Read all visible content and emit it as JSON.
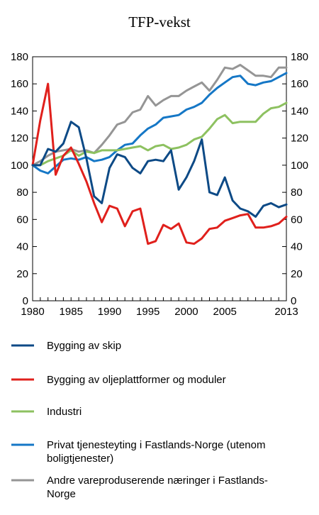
{
  "chart_data": {
    "type": "line",
    "title": "TFP-vekst",
    "xlabel": "",
    "ylabel": "",
    "ylim": [
      0,
      180
    ],
    "yticks": [
      0,
      20,
      40,
      60,
      80,
      100,
      120,
      140,
      160,
      180
    ],
    "xticks": [
      1980,
      1985,
      1990,
      1995,
      2000,
      2005,
      2013
    ],
    "xlim": [
      1980,
      2013
    ],
    "grid": false,
    "legend_position": "bottom",
    "x": [
      1980,
      1981,
      1982,
      1983,
      1984,
      1985,
      1986,
      1987,
      1988,
      1989,
      1990,
      1991,
      1992,
      1993,
      1994,
      1995,
      1996,
      1997,
      1998,
      1999,
      2000,
      2001,
      2002,
      2003,
      2004,
      2005,
      2006,
      2007,
      2008,
      2009,
      2010,
      2011,
      2012,
      2013
    ],
    "series": [
      {
        "name": "Bygging av skip",
        "color": "#0d4a86",
        "values": [
          100,
          100,
          112,
          110,
          116,
          132,
          128,
          105,
          77,
          72,
          98,
          108,
          106,
          98,
          94,
          103,
          104,
          103,
          111,
          82,
          91,
          103,
          119,
          80,
          78,
          91,
          74,
          68,
          66,
          62,
          70,
          72,
          69,
          71
        ]
      },
      {
        "name": "Bygging av oljeplattformer og moduler",
        "color": "#e0201c",
        "values": [
          100,
          133,
          160,
          93,
          107,
          113,
          101,
          88,
          72,
          58,
          70,
          68,
          55,
          66,
          68,
          42,
          44,
          56,
          53,
          57,
          43,
          42,
          46,
          53,
          54,
          59,
          61,
          63,
          64,
          54,
          54,
          55,
          57,
          62
        ]
      },
      {
        "name": "Industri",
        "color": "#8dc160",
        "values": [
          100,
          100,
          103,
          105,
          107,
          111,
          107,
          110,
          109,
          111,
          111,
          111,
          112,
          113,
          114,
          111,
          114,
          115,
          112,
          113,
          115,
          119,
          121,
          127,
          134,
          137,
          131,
          132,
          132,
          132,
          138,
          142,
          143,
          146
        ]
      },
      {
        "name": "Privat tjenesteyting i Fastlands-Norge (utenom boligtjenester)",
        "color": "#1577c6",
        "values": [
          100,
          96,
          94,
          99,
          104,
          105,
          104,
          106,
          103,
          104,
          106,
          111,
          115,
          116,
          122,
          127,
          130,
          135,
          136,
          137,
          141,
          143,
          146,
          152,
          157,
          161,
          165,
          166,
          160,
          159,
          161,
          162,
          165,
          168
        ]
      },
      {
        "name": "Andre vareproduserende næringer i Fastlands-Norge",
        "color": "#959595",
        "values": [
          100,
          103,
          107,
          110,
          111,
          112,
          110,
          111,
          109,
          115,
          122,
          130,
          132,
          139,
          141,
          151,
          144,
          148,
          151,
          151,
          155,
          158,
          161,
          155,
          163,
          172,
          171,
          174,
          170,
          166,
          166,
          165,
          172,
          172
        ]
      }
    ]
  }
}
